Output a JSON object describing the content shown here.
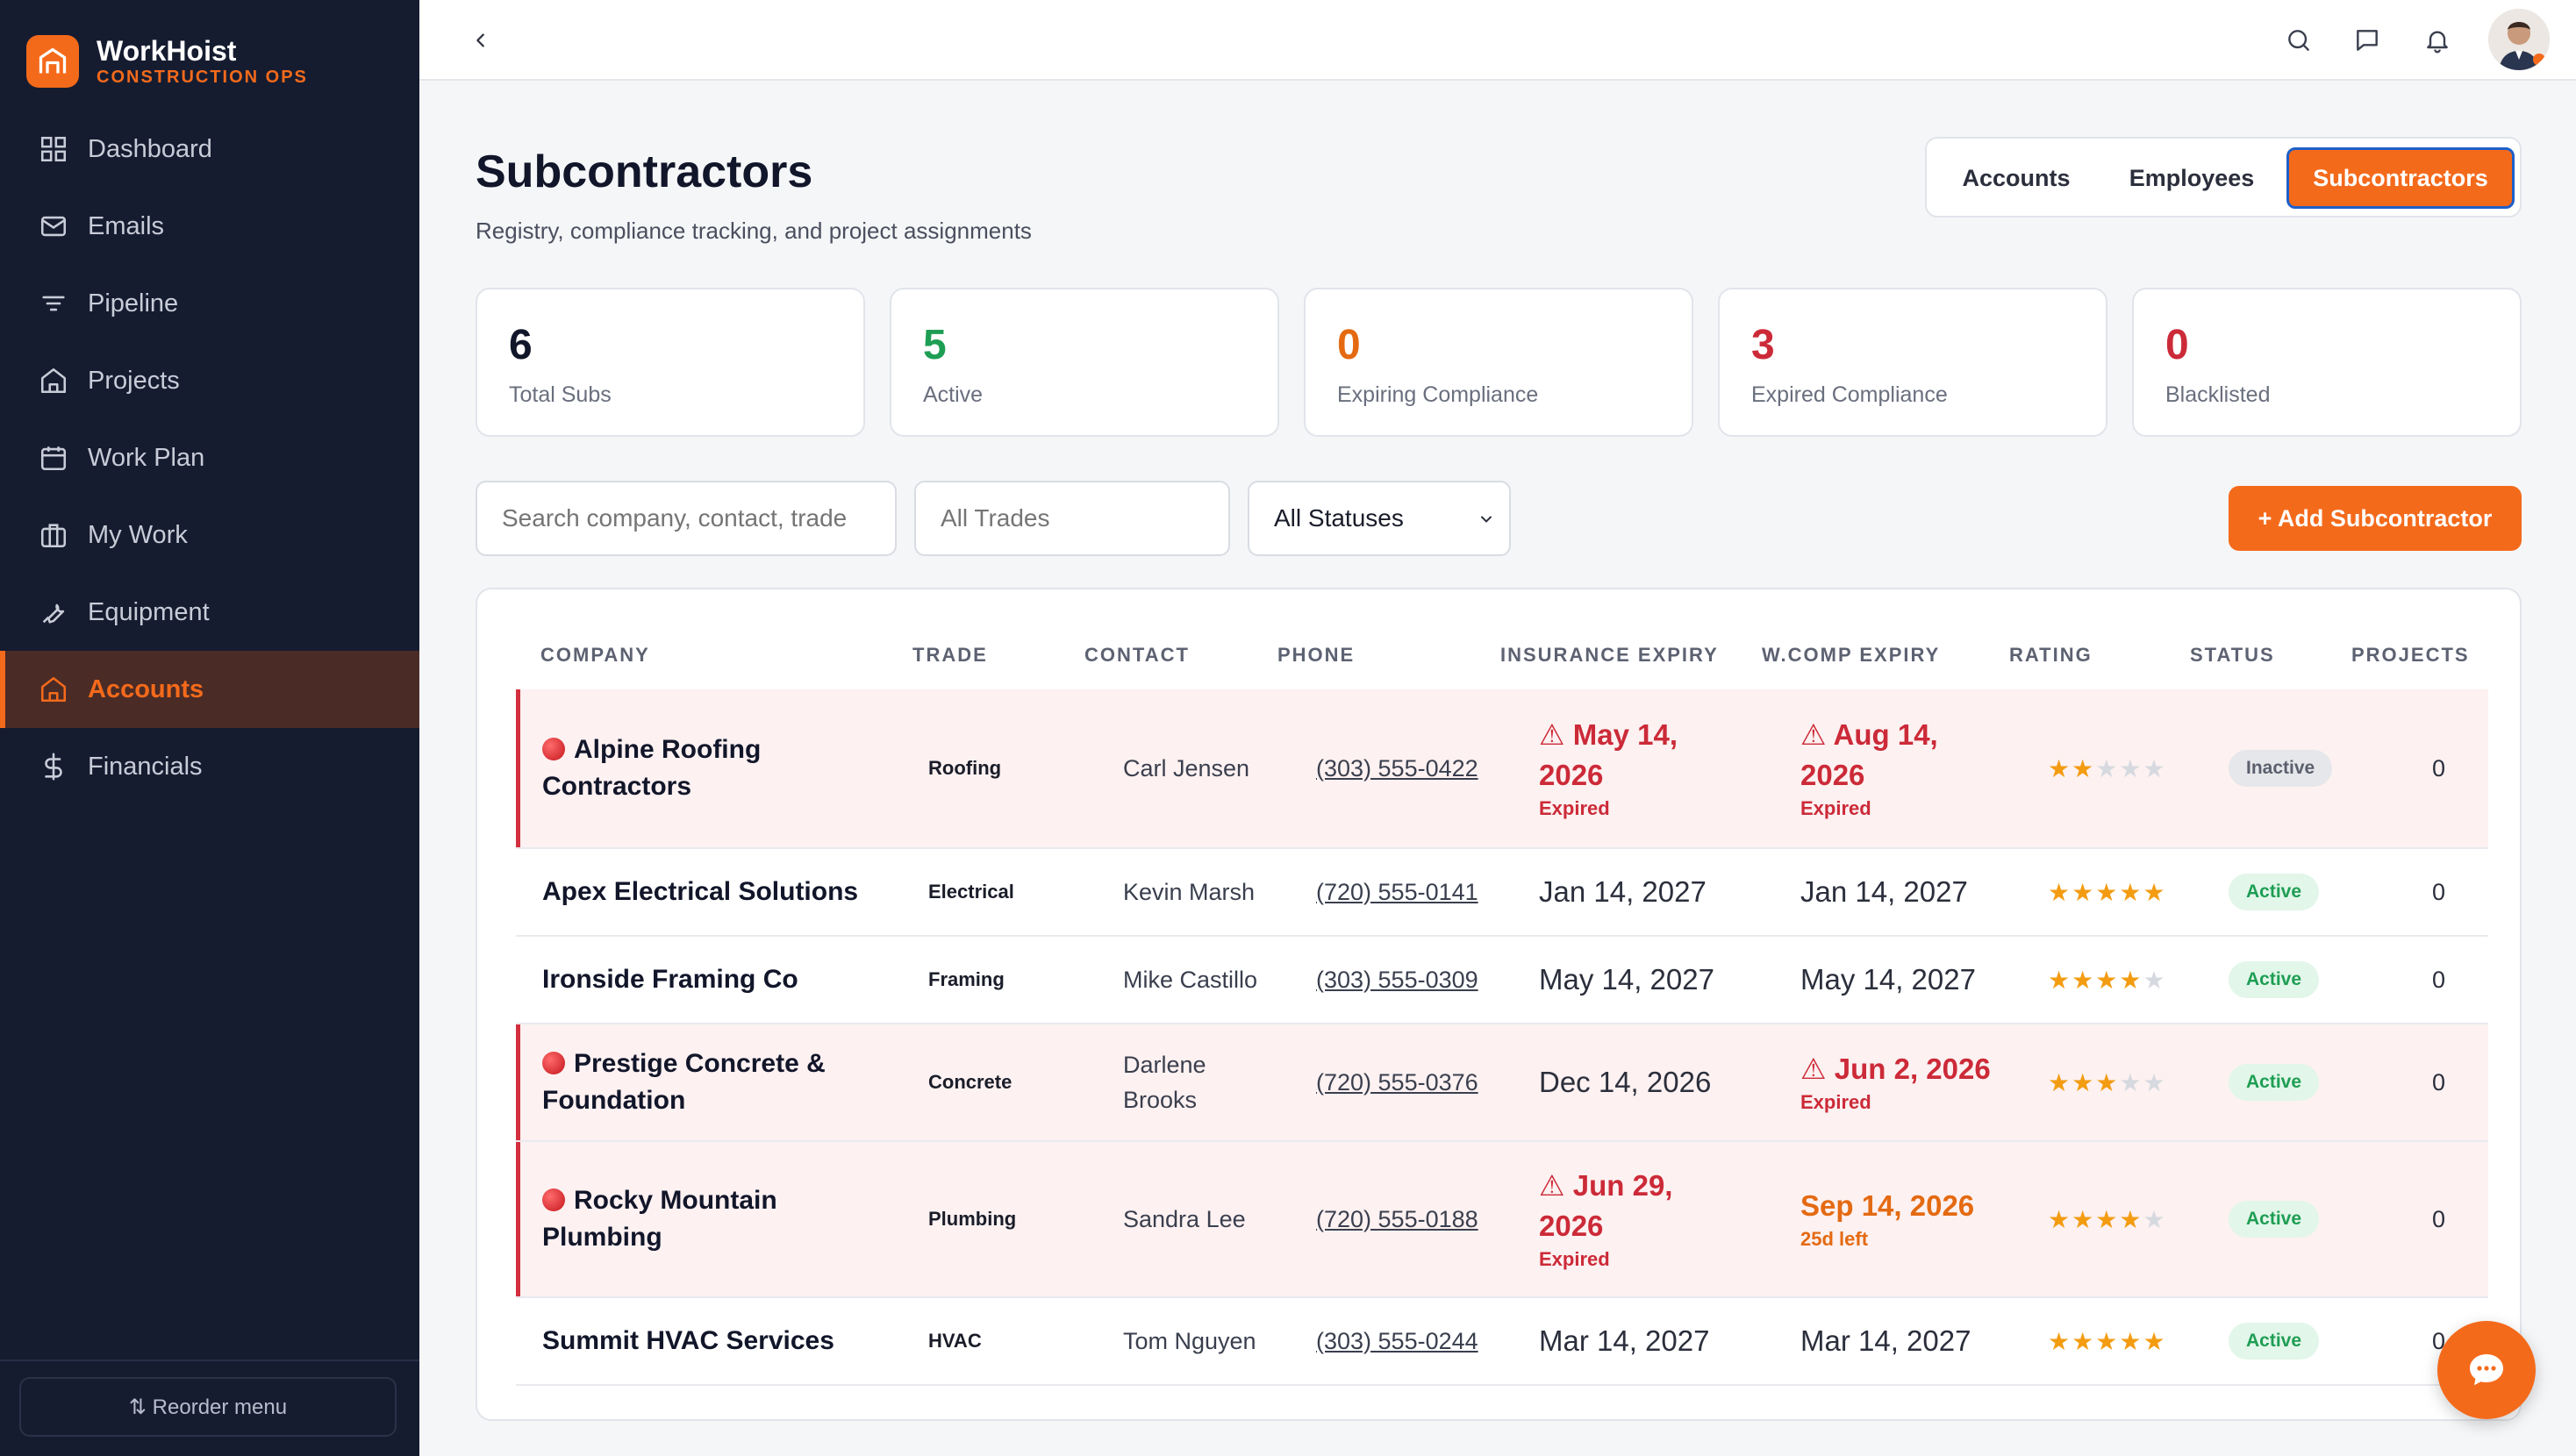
{
  "brand": {
    "name": "WorkHoist",
    "subtitle": "CONSTRUCTION OPS"
  },
  "nav": [
    {
      "label": "Dashboard",
      "icon": "grid-icon"
    },
    {
      "label": "Emails",
      "icon": "mail-icon"
    },
    {
      "label": "Pipeline",
      "icon": "filter-icon"
    },
    {
      "label": "Projects",
      "icon": "home-icon"
    },
    {
      "label": "Work Plan",
      "icon": "calendar-icon"
    },
    {
      "label": "My Work",
      "icon": "briefcase-icon"
    },
    {
      "label": "Equipment",
      "icon": "wrench-icon"
    },
    {
      "label": "Accounts",
      "icon": "building-icon",
      "active": true
    },
    {
      "label": "Financials",
      "icon": "dollar-icon"
    }
  ],
  "footer": {
    "reorder_label": "⇅ Reorder menu"
  },
  "header": {
    "title": "Subcontractors",
    "subtitle": "Registry, compliance tracking, and project assignments"
  },
  "tabs": [
    {
      "label": "Accounts"
    },
    {
      "label": "Employees"
    },
    {
      "label": "Subcontractors",
      "active": true
    }
  ],
  "stats": [
    {
      "value": "6",
      "label": "Total Subs",
      "color": "#12162a"
    },
    {
      "value": "5",
      "label": "Active",
      "color": "#1e9e54"
    },
    {
      "value": "0",
      "label": "Expiring Compliance",
      "color": "#e46a12"
    },
    {
      "value": "3",
      "label": "Expired Compliance",
      "color": "#cc2a38"
    },
    {
      "value": "0",
      "label": "Blacklisted",
      "color": "#cc2a38"
    }
  ],
  "filters": {
    "search_placeholder": "Search company, contact, trade",
    "trades_placeholder": "All Trades",
    "status_value": "All Statuses",
    "add_label": "+ Add Subcontractor"
  },
  "columns": {
    "company": "COMPANY",
    "trade": "TRADE",
    "contact": "CONTACT",
    "phone": "PHONE",
    "insurance": "INSURANCE EXPIRY",
    "wcomp": "W.COMP EXPIRY",
    "rating": "RATING",
    "status": "STATUS",
    "projects": "PROJECTS"
  },
  "rows": [
    {
      "company_l1": "Alpine Roofing",
      "company_l2": "Contractors",
      "alert": true,
      "trade": "Roofing",
      "contact_l1": "Carl Jensen",
      "contact_l2": "",
      "phone": "(303) 555-0422",
      "ins_l1": "⚠ May 14,",
      "ins_l2": "2026",
      "ins_note": "Expired",
      "ins_state": "red",
      "wc_l1": "⚠ Aug 14,",
      "wc_l2": "2026",
      "wc_note": "Expired",
      "wc_state": "red",
      "rating": 2,
      "status": "Inactive",
      "projects": "0"
    },
    {
      "company_l1": "Apex Electrical Solutions",
      "company_l2": "",
      "alert": false,
      "trade": "Electrical",
      "contact_l1": "Kevin Marsh",
      "contact_l2": "",
      "phone": "(720) 555-0141",
      "ins_l1": "Jan 14, 2027",
      "ins_l2": "",
      "ins_note": "",
      "ins_state": "normal",
      "wc_l1": "Jan 14, 2027",
      "wc_l2": "",
      "wc_note": "",
      "wc_state": "normal",
      "rating": 5,
      "status": "Active",
      "projects": "0"
    },
    {
      "company_l1": "Ironside Framing Co",
      "company_l2": "",
      "alert": false,
      "trade": "Framing",
      "contact_l1": "Mike Castillo",
      "contact_l2": "",
      "phone": "(303) 555-0309",
      "ins_l1": "May 14, 2027",
      "ins_l2": "",
      "ins_note": "",
      "ins_state": "normal",
      "wc_l1": "May 14, 2027",
      "wc_l2": "",
      "wc_note": "",
      "wc_state": "normal",
      "rating": 4,
      "status": "Active",
      "projects": "0"
    },
    {
      "company_l1": "Prestige Concrete &",
      "company_l2": "Foundation",
      "alert": true,
      "trade": "Concrete",
      "contact_l1": "Darlene",
      "contact_l2": "Brooks",
      "phone": "(720) 555-0376",
      "ins_l1": "Dec 14, 2026",
      "ins_l2": "",
      "ins_note": "",
      "ins_state": "normal",
      "wc_l1": "⚠ Jun 2, 2026",
      "wc_l2": "",
      "wc_note": "Expired",
      "wc_state": "red",
      "rating": 3,
      "status": "Active",
      "projects": "0"
    },
    {
      "company_l1": "Rocky Mountain",
      "company_l2": "Plumbing",
      "alert": true,
      "trade": "Plumbing",
      "contact_l1": "Sandra Lee",
      "contact_l2": "",
      "phone": "(720) 555-0188",
      "ins_l1": "⚠ Jun 29,",
      "ins_l2": "2026",
      "ins_note": "Expired",
      "ins_state": "red",
      "wc_l1": "Sep 14, 2026",
      "wc_l2": "",
      "wc_note": "25d left",
      "wc_state": "orange",
      "rating": 4,
      "status": "Active",
      "projects": "0"
    },
    {
      "company_l1": "Summit HVAC Services",
      "company_l2": "",
      "alert": false,
      "trade": "HVAC",
      "contact_l1": "Tom Nguyen",
      "contact_l2": "",
      "phone": "(303) 555-0244",
      "ins_l1": "Mar 14, 2027",
      "ins_l2": "",
      "ins_note": "",
      "ins_state": "normal",
      "wc_l1": "Mar 14, 2027",
      "wc_l2": "",
      "wc_note": "",
      "wc_state": "normal",
      "rating": 5,
      "status": "Active",
      "projects": "0"
    }
  ]
}
